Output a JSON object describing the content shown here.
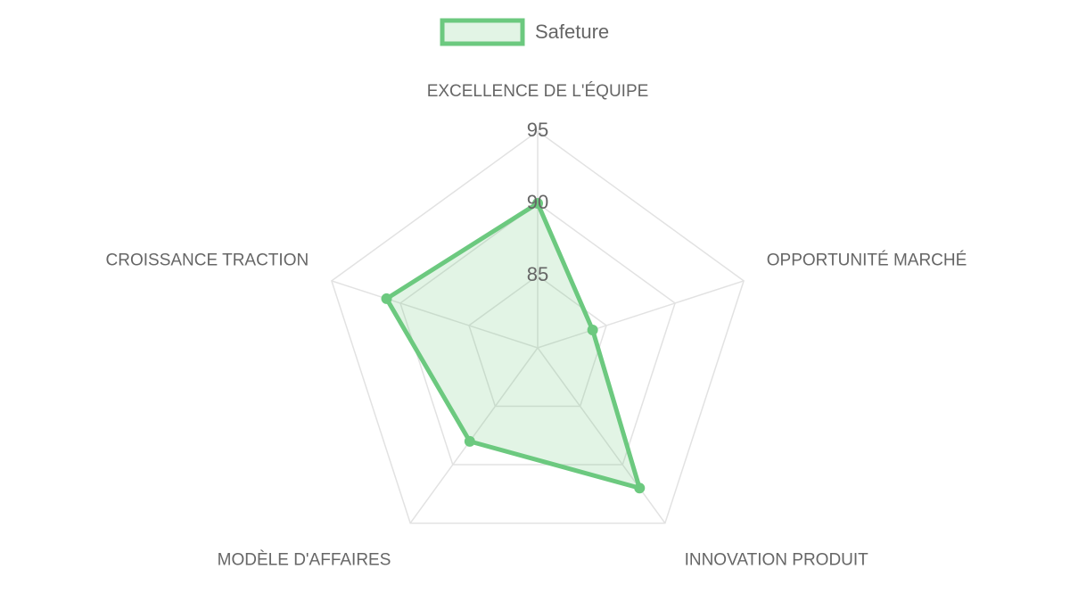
{
  "chart_data": {
    "type": "radar",
    "categories": [
      "EXCELLENCE DE L'ÉQUIPE",
      "OPPORTUNITÉ MARCHÉ",
      "INNOVATION PRODUIT",
      "MODÈLE D'AFFAIRES",
      "CROISSANCE TRACTION"
    ],
    "series": [
      {
        "name": "Safeture",
        "color": "#6cc97f",
        "values": [
          90,
          84,
          92,
          88,
          91
        ]
      }
    ],
    "ylim": [
      80,
      95
    ],
    "yticks": [
      85,
      90,
      95
    ],
    "grid": true,
    "legend": "top"
  }
}
